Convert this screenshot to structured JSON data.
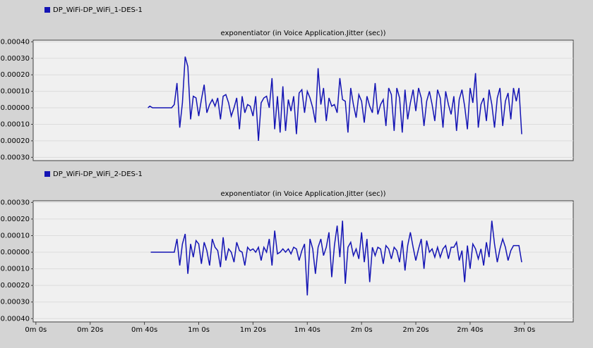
{
  "chart_data": [
    {
      "type": "line",
      "title": "exponentiator (in Voice Application.Jitter (sec))",
      "xlim": [
        -1,
        198
      ],
      "ylim": [
        -0.00032,
        0.00041
      ],
      "yticks": [
        {
          "value": 0.0004,
          "label": "0.00040"
        },
        {
          "value": 0.0003,
          "label": "0.00030"
        },
        {
          "value": 0.0002,
          "label": "0.00020"
        },
        {
          "value": 0.0001,
          "label": "0.00010"
        },
        {
          "value": 0,
          "label": "0.00000"
        },
        {
          "value": -0.0001,
          "label": "-0.00010"
        },
        {
          "value": -0.0002,
          "label": "-0.00020"
        },
        {
          "value": -0.0003,
          "label": "-0.00030"
        }
      ],
      "grid": true,
      "series": [
        {
          "name": "DP_WiFi-DP_WiFi_1-DES-1",
          "color": "#1414b4",
          "x": [
            41.3,
            42,
            43,
            44,
            46,
            48,
            50,
            51,
            52,
            53,
            54,
            55,
            56,
            57,
            58,
            59,
            60,
            61,
            62,
            63,
            64,
            65,
            66,
            67,
            68,
            69,
            70,
            71,
            72,
            73,
            74,
            75,
            76,
            77,
            78,
            79,
            80,
            81,
            82,
            83,
            84,
            85,
            86,
            87,
            88,
            89,
            90,
            91,
            92,
            93,
            94,
            95,
            96,
            97,
            98,
            99,
            100,
            101,
            102,
            103,
            104,
            105,
            106,
            107,
            108,
            109,
            110,
            111,
            112,
            113,
            114,
            115,
            116,
            117,
            118,
            119,
            120,
            121,
            122,
            123,
            124,
            125,
            126,
            127,
            128,
            129,
            130,
            131,
            132,
            133,
            134,
            135,
            136,
            137,
            138,
            139,
            140,
            141,
            142,
            143,
            144,
            145,
            146,
            147,
            148,
            149,
            150,
            151,
            152,
            153,
            154,
            155,
            156,
            157,
            158,
            159,
            160,
            161,
            162,
            163,
            164,
            165,
            166,
            167,
            168,
            169,
            170,
            171,
            172,
            173,
            174,
            175,
            176,
            177,
            178,
            179
          ],
          "values": [
            0,
            1e-05,
            0,
            0,
            0,
            0,
            0,
            2e-05,
            0.00015,
            -0.00012,
            3e-05,
            0.00031,
            0.00025,
            -7e-05,
            7e-05,
            6e-05,
            -5e-05,
            5e-05,
            0.00014,
            -3e-05,
            2e-05,
            5e-05,
            1e-05,
            6e-05,
            -7e-05,
            7e-05,
            8e-05,
            3e-05,
            -5e-05,
            0,
            6e-05,
            -0.00013,
            7e-05,
            -3e-05,
            2e-05,
            1e-05,
            -5e-05,
            7e-05,
            -0.0002,
            3e-05,
            6e-05,
            7e-05,
            0,
            0.00018,
            -0.00013,
            7e-05,
            -0.00015,
            0.00013,
            -0.00014,
            5e-05,
            -2e-05,
            7e-05,
            -0.00016,
            9e-05,
            0.00011,
            -3e-05,
            0.0001,
            6e-05,
            0,
            -9e-05,
            0.00024,
            2e-05,
            0.00012,
            -8e-05,
            6e-05,
            1e-05,
            2e-05,
            -3e-05,
            0.00018,
            5e-05,
            4e-05,
            -0.00015,
            0.00012,
            2e-05,
            -6e-05,
            8e-05,
            4e-05,
            -9e-05,
            7e-05,
            1e-05,
            -3e-05,
            0.00015,
            -4e-05,
            2e-05,
            5e-05,
            -0.00011,
            0.00012,
            8e-05,
            -0.00014,
            0.00012,
            6e-05,
            -0.00015,
            0.00011,
            -7e-05,
            3e-05,
            0.00011,
            -2e-05,
            0.00012,
            6e-05,
            -0.00011,
            4e-05,
            0.0001,
            2e-05,
            -8e-05,
            0.00011,
            6e-05,
            -0.00012,
            0.0001,
            2e-05,
            -4e-05,
            7e-05,
            -0.00014,
            5e-05,
            0.00011,
            1e-05,
            -0.00013,
            0.00012,
            3e-05,
            0.00021,
            -0.00012,
            2e-05,
            6e-05,
            -8e-05,
            0.00011,
            2e-05,
            -0.00012,
            6e-05,
            0.00012,
            -0.00011,
            4e-05,
            9e-05,
            -7e-05,
            0.00012,
            4e-05,
            0.00012,
            -0.00016
          ]
        }
      ]
    },
    {
      "type": "line",
      "title": "exponentiator (in Voice Application.Jitter (sec))",
      "xlim": [
        -1,
        198
      ],
      "ylim": [
        -0.00042,
        0.00031
      ],
      "xticks": [
        {
          "value": 0,
          "label": "0m 0s"
        },
        {
          "value": 20,
          "label": "0m 20s"
        },
        {
          "value": 40,
          "label": "0m 40s"
        },
        {
          "value": 60,
          "label": "1m 0s"
        },
        {
          "value": 80,
          "label": "1m 20s"
        },
        {
          "value": 100,
          "label": "1m 40s"
        },
        {
          "value": 120,
          "label": "2m 0s"
        },
        {
          "value": 140,
          "label": "2m 20s"
        },
        {
          "value": 160,
          "label": "2m 40s"
        },
        {
          "value": 180,
          "label": "3m 0s"
        }
      ],
      "yticks": [
        {
          "value": 0.0003,
          "label": "0.00030"
        },
        {
          "value": 0.0002,
          "label": "0.00020"
        },
        {
          "value": 0.0001,
          "label": "0.00010"
        },
        {
          "value": 0,
          "label": "0.00000"
        },
        {
          "value": -0.0001,
          "label": "-0.00010"
        },
        {
          "value": -0.0002,
          "label": "-0.00020"
        },
        {
          "value": -0.0003,
          "label": "-0.00030"
        },
        {
          "value": -0.0004,
          "label": "-0.00040"
        }
      ],
      "grid": true,
      "series": [
        {
          "name": "DP_WiFi-DP_WiFi_2-DES-1",
          "color": "#1414b4",
          "x": [
            42.3,
            45,
            48,
            51,
            52,
            53,
            54,
            55,
            56,
            57,
            58,
            59,
            60,
            61,
            62,
            63,
            64,
            65,
            66,
            67,
            68,
            69,
            70,
            71,
            72,
            73,
            74,
            75,
            76,
            77,
            78,
            79,
            80,
            81,
            82,
            83,
            84,
            85,
            86,
            87,
            88,
            89,
            90,
            91,
            92,
            93,
            94,
            95,
            96,
            97,
            98,
            99,
            100,
            101,
            102,
            103,
            104,
            105,
            106,
            107,
            108,
            109,
            110,
            111,
            112,
            113,
            114,
            115,
            116,
            117,
            118,
            119,
            120,
            121,
            122,
            123,
            124,
            125,
            126,
            127,
            128,
            129,
            130,
            131,
            132,
            133,
            134,
            135,
            136,
            137,
            138,
            139,
            140,
            141,
            142,
            143,
            144,
            145,
            146,
            147,
            148,
            149,
            150,
            151,
            152,
            153,
            154,
            155,
            156,
            157,
            158,
            159,
            160,
            161,
            162,
            163,
            164,
            165,
            166,
            167,
            168,
            169,
            170,
            171,
            172,
            173,
            174,
            175,
            176,
            177,
            178,
            179
          ],
          "values": [
            0,
            0,
            0,
            0,
            8e-05,
            -8e-05,
            5e-05,
            0.00011,
            -0.00013,
            5e-05,
            -3e-05,
            7e-05,
            5e-05,
            -7e-05,
            6e-05,
            1e-05,
            -8e-05,
            8e-05,
            3e-05,
            1e-05,
            -9e-05,
            9e-05,
            -5e-05,
            2e-05,
            0,
            -6e-05,
            6e-05,
            1e-05,
            0,
            -8e-05,
            3e-05,
            1e-05,
            2e-05,
            0,
            3e-05,
            -5e-05,
            3e-05,
            0,
            8e-05,
            -8e-05,
            0.00013,
            -1e-05,
            0,
            2e-05,
            0,
            2e-05,
            -1e-05,
            3e-05,
            2e-05,
            -5e-05,
            1e-05,
            5e-05,
            -0.00026,
            8e-05,
            2e-05,
            -0.00013,
            3e-05,
            8e-05,
            -2e-05,
            3e-05,
            0.00012,
            -0.00015,
            4e-05,
            0.00016,
            -3e-05,
            0.00019,
            -0.00019,
            3e-05,
            6e-05,
            -2e-05,
            2e-05,
            -4e-05,
            0.00012,
            -6e-05,
            8e-05,
            -0.00018,
            3e-05,
            -2e-05,
            3e-05,
            2e-05,
            -7e-05,
            4e-05,
            2e-05,
            -4e-05,
            3e-05,
            1e-05,
            -6e-05,
            7e-05,
            -0.00011,
            4e-05,
            0.00012,
            3e-05,
            -5e-05,
            2e-05,
            8e-05,
            -0.0001,
            7e-05,
            0,
            2e-05,
            -3e-05,
            3e-05,
            -3e-05,
            2e-05,
            4e-05,
            -4e-05,
            3e-05,
            3e-05,
            6e-05,
            -5e-05,
            1e-05,
            -0.00018,
            4e-05,
            -0.0001,
            5e-05,
            2e-05,
            -4e-05,
            2e-05,
            -8e-05,
            6e-05,
            -3e-05,
            0.00019,
            5e-05,
            -6e-05,
            2e-05,
            8e-05,
            3e-05,
            -5e-05,
            1e-05,
            4e-05,
            4e-05,
            4e-05,
            -6e-05
          ]
        }
      ]
    }
  ]
}
